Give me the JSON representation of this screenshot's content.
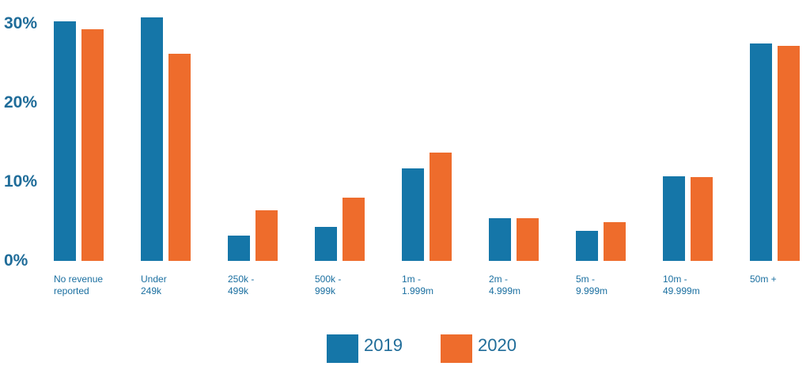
{
  "chart_data": {
    "type": "bar",
    "categories": [
      "No revenue\nreported",
      "Under\n249k",
      "250k -\n499k",
      "500k -\n999k",
      "1m -\n1.999m",
      "2m -\n4.999m",
      "5m -\n9.999m",
      "10m -\n49.999m",
      "50m +"
    ],
    "series": [
      {
        "name": "2019",
        "color": "#1576a8",
        "values": [
          30.3,
          30.8,
          3.2,
          4.3,
          11.7,
          5.4,
          3.8,
          10.7,
          27.5
        ]
      },
      {
        "name": "2020",
        "color": "#ee6c2c",
        "values": [
          29.3,
          26.2,
          6.4,
          8.0,
          13.7,
          5.4,
          4.9,
          10.6,
          27.2
        ]
      }
    ],
    "ylim": [
      0,
      32
    ],
    "yticks": [
      {
        "value": 0,
        "label": "0%"
      },
      {
        "value": 10,
        "label": "10%"
      },
      {
        "value": 20,
        "label": "20%"
      },
      {
        "value": 30,
        "label": "30%"
      }
    ],
    "grid": false
  }
}
